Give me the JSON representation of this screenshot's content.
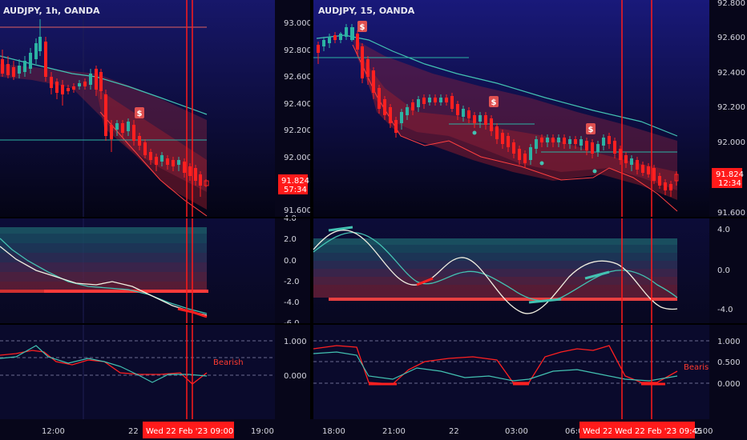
{
  "charts": {
    "left": {
      "title": "AUDJPY, 1h, OANDA",
      "price_axis": [
        "93.000",
        "92.800",
        "92.600",
        "92.400",
        "92.200",
        "92.000",
        "91.600"
      ],
      "last_price": "91.824",
      "countdown": "57:34",
      "osc_axis": [
        "4.0",
        "2.0",
        "0.0",
        "-2.0",
        "-4.0",
        "-6.0"
      ],
      "bottom_axis": [
        "1.000",
        "0.000"
      ],
      "bottom_label": "Bearish"
    },
    "right": {
      "title": "AUDJPY, 15, OANDA",
      "price_axis": [
        "92.800",
        "92.600",
        "92.400",
        "92.200",
        "92.000",
        "91.600"
      ],
      "last_price": "91.824",
      "countdown": "12:34",
      "osc_axis": [
        "4.0",
        "0.0",
        "-4.0"
      ],
      "bottom_axis": [
        "1.000",
        "0.500",
        "0.000"
      ],
      "bottom_label": "Bearish"
    }
  },
  "signal_marker": "$",
  "time_axis": {
    "left": [
      "12:00",
      "22",
      "19:00"
    ],
    "left_cursor": "Wed 22 Feb '23   09:00",
    "right": [
      "18:00",
      "21:00",
      "22",
      "03:00",
      "06:00",
      "2:00"
    ],
    "right_cursor_a": "Wed 22",
    "right_cursor_b": "Wed 22 Feb '23   09:45"
  },
  "colors": {
    "bg": "#07061a",
    "up": "#2bb3a3",
    "down": "#ff2020",
    "cursor": "#ff1a1a",
    "teal": "#43c2b2"
  }
}
